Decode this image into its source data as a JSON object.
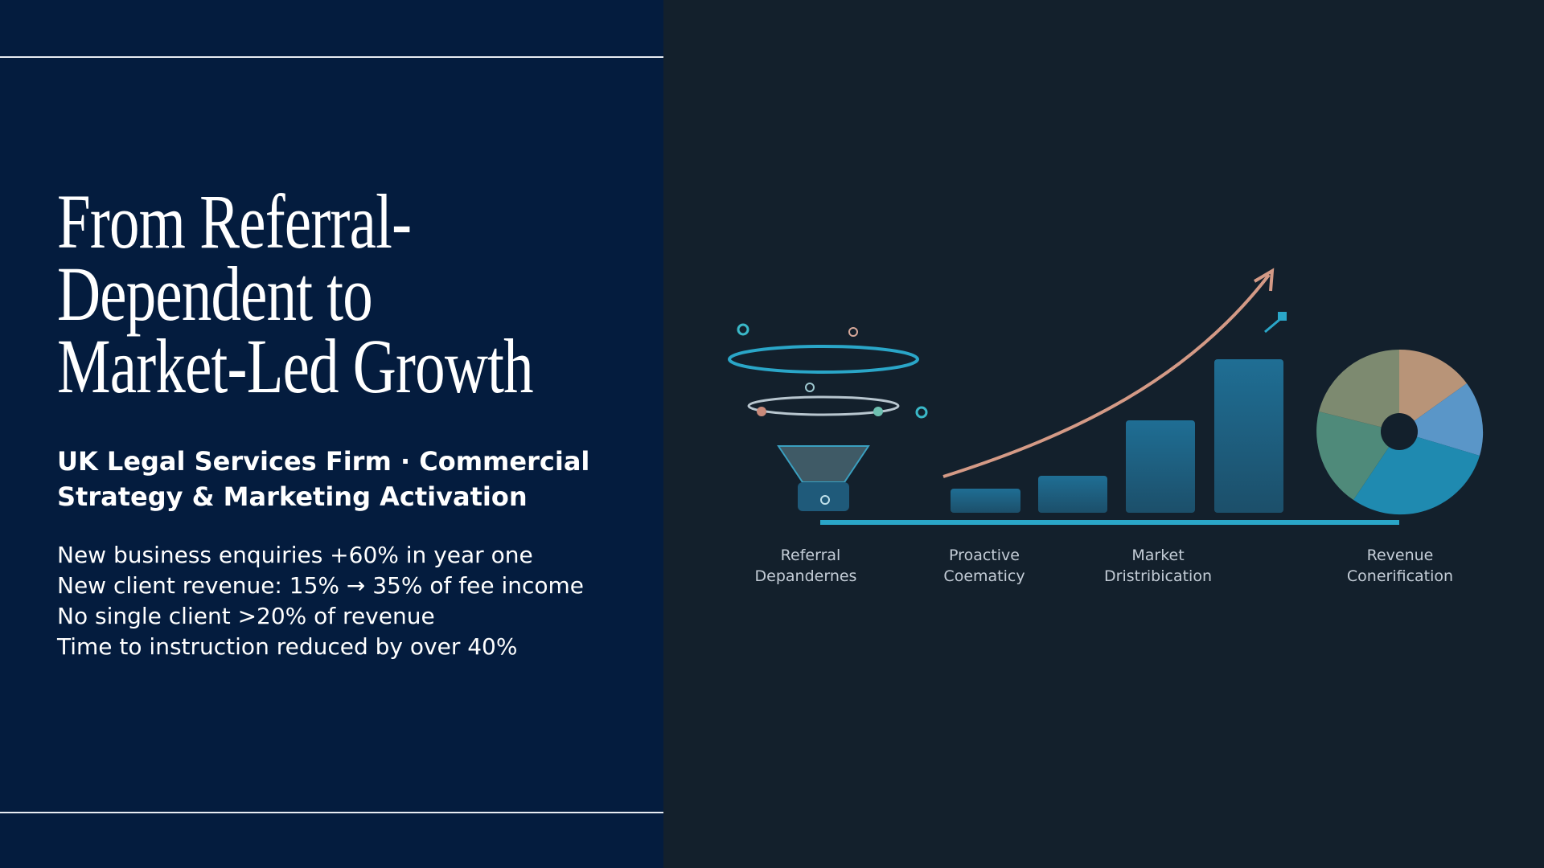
{
  "slide": {
    "title_lines": [
      "From Referral-",
      "Dependent to",
      "Market-Led Growth"
    ],
    "subtitle_lines": [
      "UK Legal Services Firm · Commercial",
      "Strategy & Marketing Activation"
    ],
    "results": [
      "New business enquiries +60% in year one",
      "New client revenue: 15% → 35% of fee income",
      "No single client >20% of revenue",
      "Time to instruction reduced by over 40%"
    ],
    "illustration_labels": [
      [
        "Referral",
        "Depandernes"
      ],
      [
        "Proactive",
        "Coematicy"
      ],
      [
        "Market",
        "Dristribication"
      ],
      [
        "Revenue",
        "Conerification"
      ]
    ]
  }
}
